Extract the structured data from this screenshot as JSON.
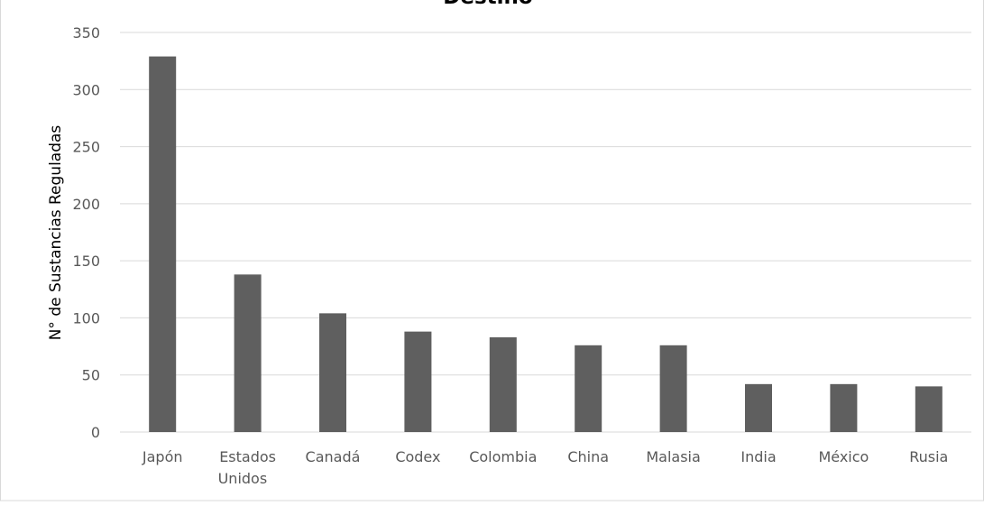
{
  "chart_data": {
    "type": "bar",
    "title": "Destino",
    "xlabel": "",
    "ylabel": "N° de Sustancias Reguladas",
    "categories": [
      [
        "Japón"
      ],
      [
        "Estados",
        "Unidos"
      ],
      [
        "Canadá"
      ],
      [
        "Codex"
      ],
      [
        "Colombia"
      ],
      [
        "China"
      ],
      [
        "Malasia"
      ],
      [
        "India"
      ],
      [
        "México"
      ],
      [
        "Rusia"
      ]
    ],
    "values": [
      329,
      138,
      104,
      88,
      83,
      76,
      76,
      42,
      42,
      40
    ],
    "ylim": [
      0,
      350
    ],
    "yticks": [
      "0",
      "50",
      "100",
      "150",
      "200",
      "250",
      "300",
      "350"
    ],
    "grid": true,
    "legend": "none",
    "colors": {
      "bar": "#5f5f5f",
      "grid": "#d9d9d9",
      "text": "#595959",
      "title": "#000000",
      "frame": "#d9d9d9"
    }
  }
}
